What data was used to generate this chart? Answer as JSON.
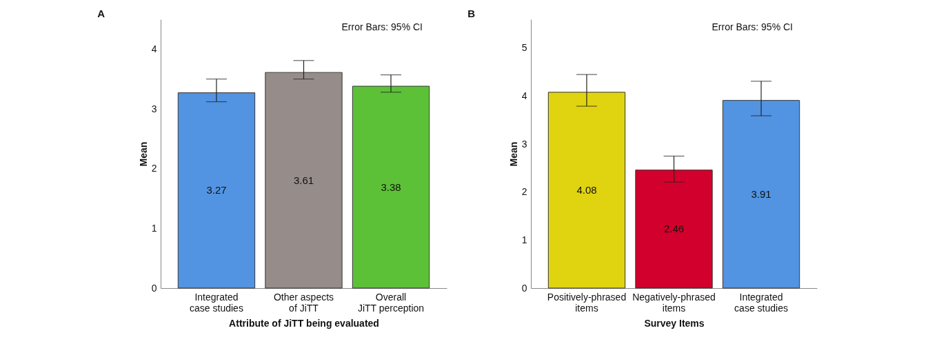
{
  "chart_data": [
    {
      "type": "bar",
      "title": "A",
      "xlabel": "Attribute of JiTT being evaluated",
      "ylabel": "Mean",
      "annotations": [
        "Error Bars: 95% CI"
      ],
      "categories": [
        "Integrated case studies",
        "Other aspects of JiTT",
        "Overall JiTT perception"
      ],
      "values": [
        3.27,
        3.61,
        3.38
      ],
      "colors": [
        "#5294e2",
        "#968d8b",
        "#5cc137"
      ],
      "errors": [
        [
          3.12,
          3.5
        ],
        [
          3.5,
          3.81
        ],
        [
          3.28,
          3.57
        ]
      ],
      "ylim": [
        0,
        4.5
      ],
      "yticks": [
        0,
        1,
        2,
        3,
        4
      ],
      "data_labels": true,
      "grid": false,
      "legend": false
    },
    {
      "type": "bar",
      "title": "B",
      "xlabel": "Survey Items",
      "ylabel": "Mean",
      "annotations": [
        "Error Bars: 95% CI"
      ],
      "categories": [
        "Positively-phrased items",
        "Negatively-phrased items",
        "Integrated case studies"
      ],
      "values": [
        4.08,
        2.46,
        3.91
      ],
      "colors": [
        "#e0d410",
        "#d2002c",
        "#5294e2"
      ],
      "errors": [
        [
          3.79,
          4.45
        ],
        [
          2.21,
          2.75
        ],
        [
          3.59,
          4.31
        ]
      ],
      "ylim": [
        0,
        5.6
      ],
      "yticks": [
        0,
        1,
        2,
        3,
        4,
        5
      ],
      "data_labels": true,
      "grid": false,
      "legend": false
    }
  ]
}
